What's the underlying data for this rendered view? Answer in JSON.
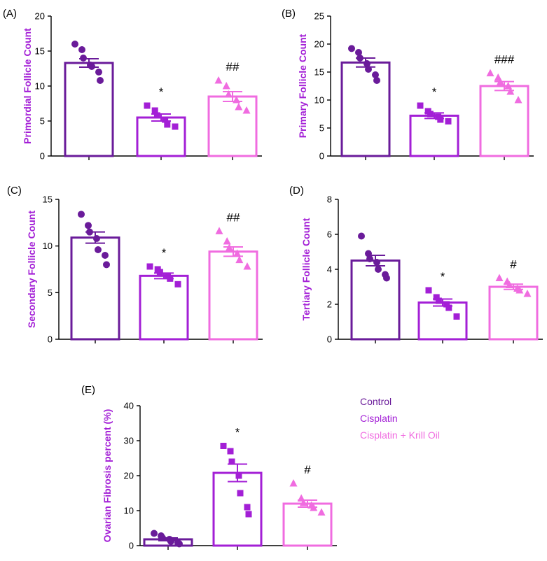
{
  "colors": {
    "control": "#6a1b9a",
    "cisplatin": "#a31fd6",
    "krill": "#f06ce0"
  },
  "legend": [
    "Control",
    "Cisplatin",
    "Cisplatin + Krill Oil"
  ],
  "chart_data": [
    {
      "panel": "(A)",
      "type": "bar",
      "ylabel": "Primordial Follicle Count",
      "ylim": [
        0,
        20
      ],
      "yticks": [
        0,
        5,
        10,
        15,
        20
      ],
      "categories": [
        "Control",
        "Cisplatin",
        "Cisplatin + Krill Oil"
      ],
      "values": [
        13.3,
        5.5,
        8.5
      ],
      "sem": [
        0.6,
        0.5,
        0.7
      ],
      "points": [
        [
          16.0,
          15.2,
          14.0,
          13.0,
          12.8,
          12.0,
          10.8
        ],
        [
          7.2,
          6.5,
          5.8,
          5.2,
          4.5,
          4.2
        ],
        [
          10.8,
          10.0,
          8.8,
          8.0,
          7.0,
          6.5
        ]
      ],
      "annotations": [
        "",
        "*",
        "##"
      ]
    },
    {
      "panel": "(B)",
      "type": "bar",
      "ylabel": "Primary Follicle Count",
      "ylim": [
        0,
        25
      ],
      "yticks": [
        0,
        5,
        10,
        15,
        20,
        25
      ],
      "categories": [
        "Control",
        "Cisplatin",
        "Cisplatin + Krill Oil"
      ],
      "values": [
        16.7,
        7.2,
        12.5
      ],
      "sem": [
        0.8,
        0.5,
        0.8
      ],
      "points": [
        [
          19.2,
          18.5,
          17.5,
          16.5,
          15.5,
          14.5,
          13.5
        ],
        [
          9.0,
          8.0,
          7.5,
          7.0,
          6.5,
          6.2
        ],
        [
          14.8,
          14.0,
          13.2,
          12.5,
          11.5,
          10.0
        ]
      ],
      "annotations": [
        "",
        "*",
        "###"
      ]
    },
    {
      "panel": "(C)",
      "type": "bar",
      "ylabel": "Secondary Follicle Count",
      "ylim": [
        0,
        15
      ],
      "yticks": [
        0,
        5,
        10,
        15
      ],
      "categories": [
        "Control",
        "Cisplatin",
        "Cisplatin + Krill Oil"
      ],
      "values": [
        10.9,
        6.8,
        9.4
      ],
      "sem": [
        0.6,
        0.3,
        0.5
      ],
      "points": [
        [
          13.4,
          12.2,
          11.5,
          10.8,
          9.6,
          9.0,
          8.0
        ],
        [
          7.8,
          7.5,
          7.2,
          6.8,
          6.5,
          5.9
        ],
        [
          11.6,
          10.5,
          9.8,
          9.2,
          8.5,
          7.8
        ]
      ],
      "annotations": [
        "",
        "*",
        "##"
      ]
    },
    {
      "panel": "(D)",
      "type": "bar",
      "ylabel": "Tertiary Follicle Count",
      "ylim": [
        0,
        8
      ],
      "yticks": [
        0,
        2,
        4,
        6,
        8
      ],
      "categories": [
        "Control",
        "Cisplatin",
        "Cisplatin + Krill Oil"
      ],
      "values": [
        4.5,
        2.1,
        3.0
      ],
      "sem": [
        0.3,
        0.2,
        0.15
      ],
      "points": [
        [
          5.9,
          4.9,
          4.6,
          4.4,
          4.0,
          3.7,
          3.5
        ],
        [
          2.8,
          2.4,
          2.2,
          2.0,
          1.8,
          1.3
        ],
        [
          3.5,
          3.3,
          3.1,
          2.9,
          2.8,
          2.6
        ]
      ],
      "annotations": [
        "",
        "*",
        "#"
      ]
    },
    {
      "panel": "(E)",
      "type": "bar",
      "ylabel": "Ovarian Fibrosis percent (%)",
      "ylim": [
        0,
        40
      ],
      "yticks": [
        0,
        10,
        20,
        30,
        40
      ],
      "categories": [
        "Control",
        "Cisplatin",
        "Cisplatin + Krill Oil"
      ],
      "values": [
        1.8,
        20.8,
        12.0
      ],
      "sem": [
        0.4,
        2.5,
        1.0
      ],
      "points": [
        [
          3.5,
          2.8,
          2.2,
          1.8,
          1.2,
          0.8,
          0.5
        ],
        [
          28.5,
          27.0,
          24.0,
          20.0,
          15.0,
          11.0,
          9.0
        ],
        [
          17.8,
          13.5,
          12.2,
          11.5,
          10.8,
          9.5
        ]
      ],
      "annotations": [
        "",
        "*",
        "#"
      ]
    }
  ]
}
